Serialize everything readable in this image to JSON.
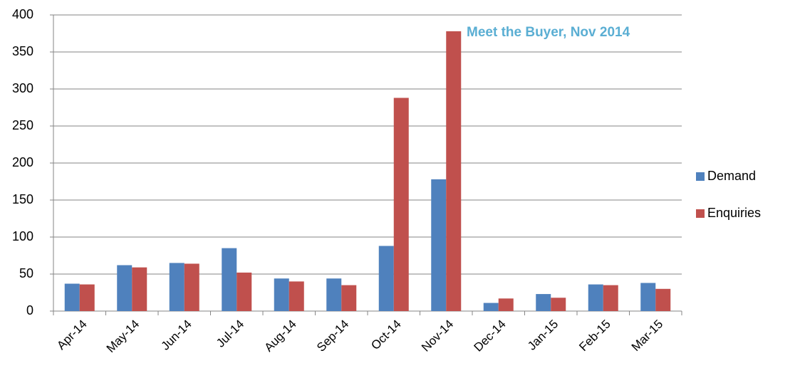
{
  "chart_data": {
    "type": "bar",
    "annotation": "Meet the Buyer, Nov 2014",
    "categories": [
      "Apr-14",
      "May-14",
      "Jun-14",
      "Jul-14",
      "Aug-14",
      "Sep-14",
      "Oct-14",
      "Nov-14",
      "Dec-14",
      "Jan-15",
      "Feb-15",
      "Mar-15"
    ],
    "series": [
      {
        "name": "Demand",
        "color": "#4f81bd",
        "values": [
          37,
          62,
          65,
          85,
          44,
          44,
          88,
          178,
          11,
          23,
          36,
          38
        ]
      },
      {
        "name": "Enquiries",
        "color": "#c0504d",
        "values": [
          36,
          59,
          64,
          52,
          40,
          35,
          288,
          378,
          17,
          18,
          35,
          30
        ]
      }
    ],
    "ylim": [
      0,
      400
    ],
    "yticks": [
      0,
      50,
      100,
      150,
      200,
      250,
      300,
      350,
      400
    ],
    "grid": true,
    "legend": "right"
  }
}
